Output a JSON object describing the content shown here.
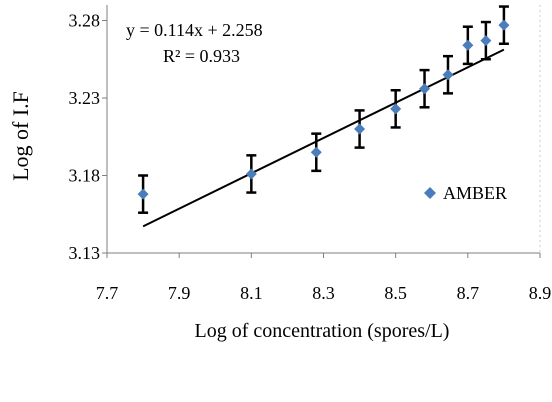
{
  "chart_data": {
    "type": "scatter",
    "title": "",
    "xlabel": "Log  of concentration (spores/L)",
    "ylabel": "Log of I.F",
    "xlim": [
      7.7,
      8.9
    ],
    "ylim": [
      3.13,
      3.29
    ],
    "x_ticks": [
      "7.7",
      "7.9",
      "8.1",
      "8.3",
      "8.5",
      "8.7",
      "8.9"
    ],
    "y_ticks": [
      "3.13",
      "3.18",
      "3.23",
      "3.28"
    ],
    "grid": false,
    "legend_position": "right",
    "series": [
      {
        "name": "AMBER",
        "color": "#4a7ebb",
        "marker": "diamond",
        "points": [
          {
            "x": 7.8,
            "y": 3.168,
            "err": 0.012
          },
          {
            "x": 8.1,
            "y": 3.181,
            "err": 0.012
          },
          {
            "x": 8.28,
            "y": 3.195,
            "err": 0.012
          },
          {
            "x": 8.4,
            "y": 3.21,
            "err": 0.012
          },
          {
            "x": 8.5,
            "y": 3.223,
            "err": 0.012
          },
          {
            "x": 8.58,
            "y": 3.236,
            "err": 0.012
          },
          {
            "x": 8.645,
            "y": 3.245,
            "err": 0.012
          },
          {
            "x": 8.7,
            "y": 3.264,
            "err": 0.012
          },
          {
            "x": 8.75,
            "y": 3.267,
            "err": 0.012
          },
          {
            "x": 8.8,
            "y": 3.277,
            "err": 0.012
          }
        ]
      }
    ],
    "trendline": {
      "slope": 0.114,
      "intercept": 2.258,
      "x_range": [
        7.8,
        8.8
      ],
      "equation": "y = 0.114x + 2.258",
      "r_squared": "R² = 0.933"
    }
  }
}
